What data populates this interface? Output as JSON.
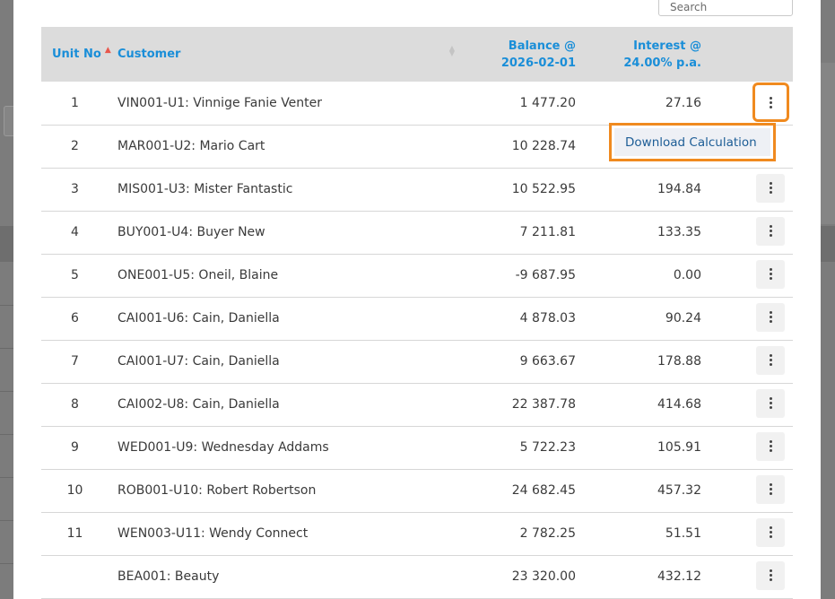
{
  "search": {
    "placeholder": "Search"
  },
  "table": {
    "columns": {
      "unit_no": "Unit No",
      "customer": "Customer",
      "balance_line1": "Balance @",
      "balance_line2": "2026-02-01",
      "interest_line1": "Interest @",
      "interest_line2": "24.00% p.a."
    },
    "sort": {
      "column": "Unit No",
      "direction": "ascending"
    },
    "rows": [
      {
        "unit": "1",
        "customer": "VIN001-U1: Vinnige Fanie Venter",
        "balance": "1 477.20",
        "interest": "27.16"
      },
      {
        "unit": "2",
        "customer": "MAR001-U2: Mario Cart",
        "balance": "10 228.74",
        "interest": ""
      },
      {
        "unit": "3",
        "customer": "MIS001-U3: Mister Fantastic",
        "balance": "10 522.95",
        "interest": "194.84"
      },
      {
        "unit": "4",
        "customer": "BUY001-U4: Buyer New",
        "balance": "7 211.81",
        "interest": "133.35"
      },
      {
        "unit": "5",
        "customer": "ONE001-U5: Oneil, Blaine",
        "balance": "-9 687.95",
        "interest": "0.00"
      },
      {
        "unit": "6",
        "customer": "CAI001-U6: Cain, Daniella",
        "balance": "4 878.03",
        "interest": "90.24"
      },
      {
        "unit": "7",
        "customer": "CAI001-U7: Cain, Daniella",
        "balance": "9 663.67",
        "interest": "178.88"
      },
      {
        "unit": "8",
        "customer": "CAI002-U8: Cain, Daniella",
        "balance": "22 387.78",
        "interest": "414.68"
      },
      {
        "unit": "9",
        "customer": "WED001-U9: Wednesday Addams",
        "balance": "5 722.23",
        "interest": "105.91"
      },
      {
        "unit": "10",
        "customer": "ROB001-U10: Robert Robertson",
        "balance": "24 682.45",
        "interest": "457.32"
      },
      {
        "unit": "11",
        "customer": "WEN003-U11: Wendy Connect",
        "balance": "2 782.25",
        "interest": "51.51"
      },
      {
        "unit": "",
        "customer": "BEA001: Beauty",
        "balance": "23 320.00",
        "interest": "432.12"
      }
    ]
  },
  "row_actions": {
    "icon": "kebab-menu-icon"
  },
  "dropdown": {
    "item": "Download Calculation"
  },
  "colors": {
    "header_text": "#1a8ed8",
    "header_bg": "#dcdcdc",
    "highlight": "#f08a1f",
    "menu_item_text": "#1d5d96",
    "sort_indicator": "#e8574c"
  }
}
